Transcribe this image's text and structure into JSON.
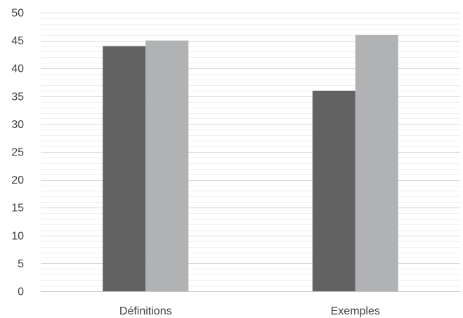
{
  "chart_data": {
    "type": "bar",
    "categories": [
      "Définitions",
      "Exemples"
    ],
    "series": [
      {
        "values": [
          44,
          36
        ],
        "color": "#626262"
      },
      {
        "values": [
          45,
          46
        ],
        "color": "#b1b2b4"
      }
    ],
    "ylim": [
      0,
      50
    ],
    "yticks": [
      "0",
      "5",
      "10",
      "15",
      "20",
      "25",
      "30",
      "35",
      "40",
      "45",
      "50"
    ],
    "grid": true,
    "legend": "none"
  }
}
